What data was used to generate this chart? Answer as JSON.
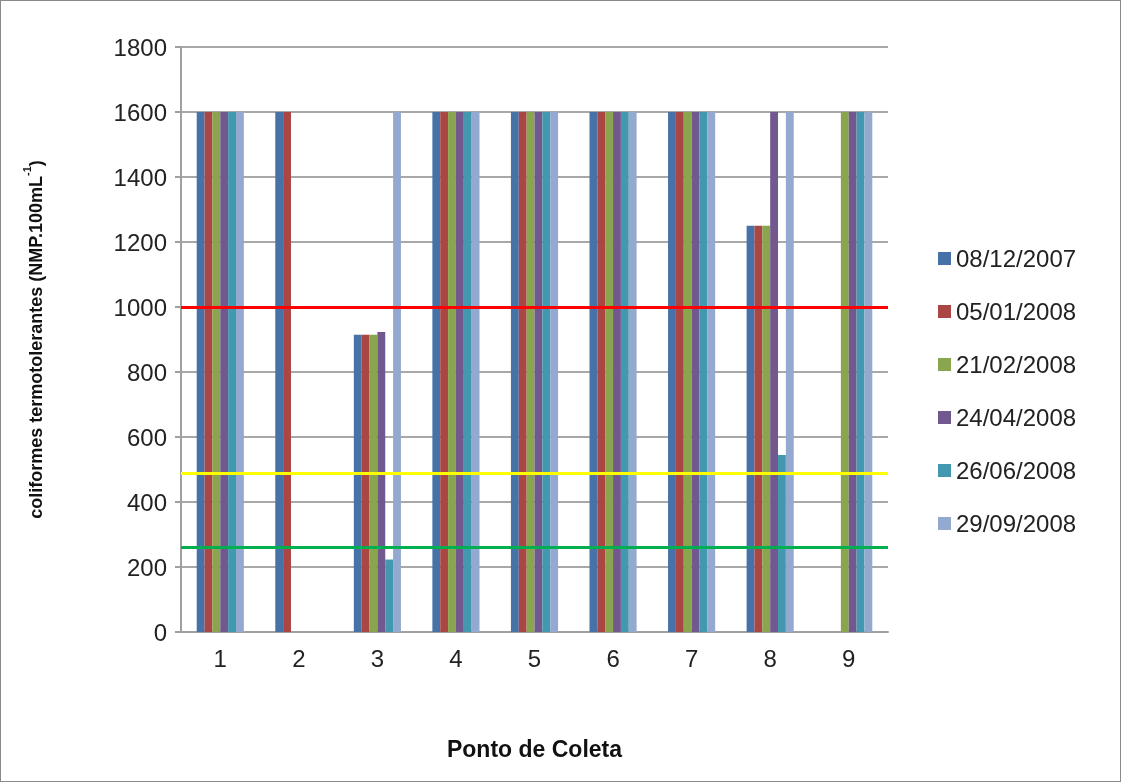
{
  "chart_data": {
    "type": "bar",
    "xlabel": "Ponto de Coleta",
    "ylabel": "coliformes termotolerantes (NMP.100mL$^{-1}$)",
    "categories": [
      "1",
      "2",
      "3",
      "4",
      "5",
      "6",
      "7",
      "8",
      "9"
    ],
    "series": [
      {
        "name": "08/12/2007",
        "color": "#4672a8",
        "values": [
          1600,
          1600,
          915,
          1600,
          1600,
          1600,
          1600,
          1250,
          null
        ]
      },
      {
        "name": "05/01/2008",
        "color": "#aa4643",
        "values": [
          1600,
          1600,
          915,
          1600,
          1600,
          1600,
          1600,
          1250,
          null
        ]
      },
      {
        "name": "21/02/2008",
        "color": "#89a54e",
        "values": [
          1600,
          null,
          915,
          1600,
          1600,
          1600,
          1600,
          1250,
          1600
        ]
      },
      {
        "name": "24/04/2008",
        "color": "#71588f",
        "values": [
          1600,
          null,
          923,
          1600,
          1600,
          1600,
          1600,
          1600,
          1600
        ]
      },
      {
        "name": "26/06/2008",
        "color": "#4198af",
        "values": [
          1600,
          null,
          223,
          1600,
          1600,
          1600,
          1600,
          545,
          1600
        ]
      },
      {
        "name": "29/09/2008",
        "color": "#93a9cf",
        "values": [
          1600,
          null,
          1600,
          1600,
          1600,
          1600,
          1600,
          1600,
          1600
        ]
      }
    ],
    "ylim": [
      0,
      1800
    ],
    "yticks": [
      0,
      200,
      400,
      600,
      800,
      1000,
      1200,
      1400,
      1600,
      1800
    ],
    "ref_lines": [
      {
        "axis": "y",
        "value": 1000,
        "color": "#ff0000"
      },
      {
        "axis": "y",
        "value": 490,
        "color": "#ffff00"
      },
      {
        "axis": "y",
        "value": 260,
        "color": "#00b050"
      }
    ],
    "grid": "y",
    "legend": "right"
  }
}
